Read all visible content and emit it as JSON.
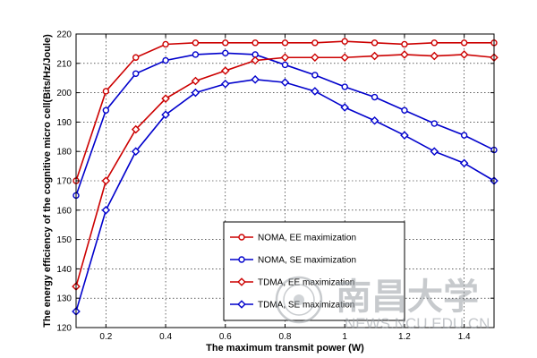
{
  "chart_data": {
    "type": "line",
    "xlabel": "The maximum transmit power (W)",
    "ylabel": "The energy efficiency of the cognitive micro cell(Bits/Hz/Joule)",
    "xlim": [
      0.1,
      1.5
    ],
    "ylim": [
      120,
      220
    ],
    "xticks": [
      0.2,
      0.4,
      0.6,
      0.8,
      1.0,
      1.2,
      1.4
    ],
    "xtick_labels": [
      "0.2",
      "0.4",
      "0.6",
      "0.8",
      "1",
      "1.2",
      "1.4"
    ],
    "yticks": [
      120,
      130,
      140,
      150,
      160,
      170,
      180,
      190,
      200,
      210,
      220
    ],
    "yticks_labels": [
      "120",
      "130",
      "140",
      "150",
      "160",
      "170",
      "180",
      "190",
      "200",
      "210",
      "220"
    ],
    "grid": true,
    "legend_position": "lower-center",
    "x": [
      0.1,
      0.2,
      0.3,
      0.4,
      0.5,
      0.6,
      0.7,
      0.8,
      0.9,
      1.0,
      1.1,
      1.2,
      1.3,
      1.4,
      1.5
    ],
    "series": [
      {
        "name": "NOMA, EE maximization",
        "color": "#cc0000",
        "marker": "circle",
        "values": [
          170,
          200.5,
          212,
          216.5,
          217,
          217,
          217,
          217,
          217,
          217.5,
          217,
          216.5,
          217,
          217,
          217
        ]
      },
      {
        "name": "NOMA, SE maximization",
        "color": "#0000cc",
        "marker": "circle",
        "values": [
          165,
          194,
          206.5,
          211,
          213,
          213.5,
          213,
          209.5,
          206,
          202,
          198.5,
          194,
          189.5,
          185.5,
          180.5
        ]
      },
      {
        "name": "TDMA, EE maximization",
        "color": "#cc0000",
        "marker": "diamond",
        "values": [
          134,
          170,
          187.5,
          198,
          204,
          207.5,
          211,
          212,
          212,
          212,
          212.5,
          213,
          212.5,
          213,
          212
        ]
      },
      {
        "name": "TDMA, SE maximization",
        "color": "#0000cc",
        "marker": "diamond",
        "values": [
          125.5,
          160,
          180,
          192.5,
          200,
          203,
          204.5,
          203.5,
          200.5,
          195,
          190.5,
          185.5,
          180,
          176,
          170
        ]
      }
    ]
  },
  "watermark": {
    "chinese_text": "南昌大学",
    "english_text": "NEWS.NCU.EDU.CN",
    "color": "#9aa0a6"
  }
}
